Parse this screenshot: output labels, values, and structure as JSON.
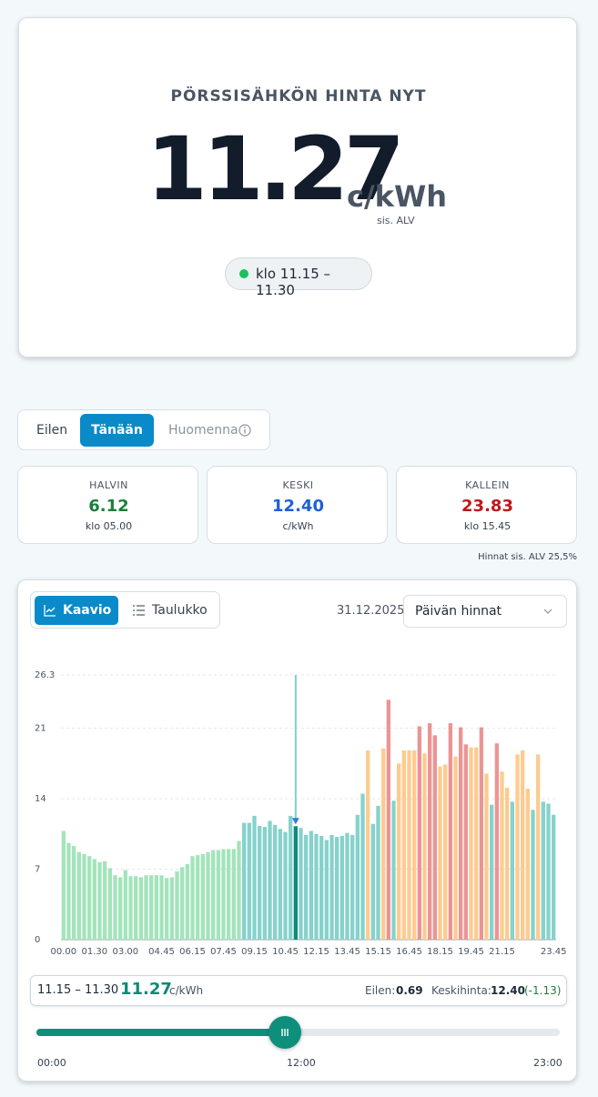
{
  "hero": {
    "title": "PÖRSSISÄHKÖN HINTA NYT",
    "price": "11.27",
    "unit": "c/kWh",
    "vat": "sis. ALV",
    "period": "klo 11.15 – 11.30"
  },
  "day_tabs": [
    "Eilen",
    "Tänään",
    "Huomenna"
  ],
  "stats": [
    {
      "label": "HALVIN",
      "value": "6.12",
      "note": "klo 05.00"
    },
    {
      "label": "KESKI",
      "value": "12.40",
      "note": "c/kWh"
    },
    {
      "label": "KALLEIN",
      "value": "23.83",
      "note": "klo 15.45"
    }
  ],
  "vat_note": "Hinnat sis. ALV 25,5%",
  "view_tabs": [
    "Kaavio",
    "Taulukko"
  ],
  "date": "31.12.2025",
  "select": "Päivän hinnat",
  "chart_data": {
    "type": "bar",
    "categories": [
      "00.00",
      null,
      null,
      null,
      null,
      null,
      "01.30",
      null,
      null,
      null,
      null,
      null,
      "03.00",
      null,
      null,
      null,
      null,
      null,
      null,
      "04.45",
      null,
      null,
      null,
      null,
      null,
      "06.15",
      null,
      null,
      null,
      null,
      null,
      "07.45",
      null,
      null,
      null,
      null,
      null,
      "09.15",
      null,
      null,
      null,
      null,
      null,
      "10.45",
      null,
      null,
      null,
      null,
      null,
      "12.15",
      null,
      null,
      null,
      null,
      null,
      "13.45",
      null,
      null,
      null,
      null,
      null,
      "15.15",
      null,
      null,
      null,
      null,
      null,
      "16.45",
      null,
      null,
      null,
      null,
      null,
      "18.15",
      null,
      null,
      null,
      null,
      null,
      "19.45",
      null,
      null,
      null,
      null,
      null,
      "21.15",
      null,
      null,
      null,
      null,
      null,
      null,
      null,
      null,
      null,
      "23.45"
    ],
    "values": [
      10.8,
      9.6,
      9.3,
      8.7,
      8.5,
      8.3,
      8.0,
      7.7,
      7.8,
      7.1,
      6.4,
      6.2,
      6.9,
      6.3,
      6.3,
      6.2,
      6.4,
      6.4,
      6.4,
      6.4,
      6.12,
      6.2,
      6.8,
      7.2,
      7.5,
      8.3,
      8.4,
      8.5,
      8.7,
      8.9,
      8.9,
      9.0,
      9.0,
      9.0,
      9.8,
      11.6,
      11.6,
      12.3,
      11.3,
      11.2,
      11.8,
      11.4,
      11.0,
      10.7,
      12.3,
      11.27,
      11.1,
      10.4,
      10.8,
      10.5,
      10.3,
      9.9,
      10.4,
      10.2,
      10.3,
      10.6,
      10.4,
      12.4,
      14.5,
      18.8,
      11.5,
      13.3,
      19.0,
      23.83,
      13.8,
      17.5,
      18.8,
      18.8,
      18.8,
      21.2,
      18.5,
      21.5,
      20.3,
      17.2,
      17.4,
      21.5,
      18.2,
      21.1,
      19.4,
      19.1,
      19.1,
      21.1,
      16.5,
      13.4,
      19.5,
      16.7,
      15.1,
      13.7,
      18.4,
      18.8,
      15.0,
      12.9,
      18.4,
      13.7,
      13.5,
      12.4
    ],
    "colors": [
      "#a3e4bb",
      "#a3e4bb",
      "#a3e4bb",
      "#a3e4bb",
      "#a3e4bb",
      "#a3e4bb",
      "#a3e4bb",
      "#a3e4bb",
      "#a3e4bb",
      "#a3e4bb",
      "#a3e4bb",
      "#a3e4bb",
      "#a3e4bb",
      "#a3e4bb",
      "#a3e4bb",
      "#a3e4bb",
      "#a3e4bb",
      "#a3e4bb",
      "#a3e4bb",
      "#a3e4bb",
      "#a3e4bb",
      "#a3e4bb",
      "#a3e4bb",
      "#a3e4bb",
      "#a3e4bb",
      "#a3e4bb",
      "#a3e4bb",
      "#a3e4bb",
      "#a3e4bb",
      "#a3e4bb",
      "#a3e4bb",
      "#a3e4bb",
      "#a3e4bb",
      "#a3e4bb",
      "#a3e4bb",
      "#86d2cc",
      "#86d2cc",
      "#86d2cc",
      "#86d2cc",
      "#86d2cc",
      "#86d2cc",
      "#86d2cc",
      "#86d2cc",
      "#86d2cc",
      "#86d2cc",
      "#0d8a78",
      "#86d2cc",
      "#86d2cc",
      "#86d2cc",
      "#86d2cc",
      "#86d2cc",
      "#86d2cc",
      "#86d2cc",
      "#86d2cc",
      "#86d2cc",
      "#86d2cc",
      "#86d2cc",
      "#86d2cc",
      "#86d2cc",
      "#fdcb8f",
      "#86d2cc",
      "#86d2cc",
      "#fdcb8f",
      "#ec9494",
      "#86d2cc",
      "#fdcb8f",
      "#fdcb8f",
      "#fdcb8f",
      "#fdcb8f",
      "#ec9494",
      "#fdcb8f",
      "#ec9494",
      "#ec9494",
      "#fdcb8f",
      "#fdcb8f",
      "#ec9494",
      "#fdcb8f",
      "#ec9494",
      "#ec9494",
      "#fdcb8f",
      "#fdcb8f",
      "#ec9494",
      "#fdcb8f",
      "#86d2cc",
      "#ec9494",
      "#fdcb8f",
      "#fdcb8f",
      "#86d2cc",
      "#fdcb8f",
      "#fdcb8f",
      "#fdcb8f",
      "#86d2cc",
      "#fdcb8f",
      "#86d2cc",
      "#86d2cc",
      "#86d2cc"
    ],
    "current_index": 45,
    "ylim": [
      0,
      26.3
    ],
    "yticks": [
      0,
      7,
      14,
      21,
      26.3
    ],
    "grid": true
  },
  "info": {
    "period": "11.15 – 11.30",
    "price": "11.27",
    "unit": "c/kWh",
    "yesterday_label": "Eilen:",
    "yesterday_value": "0.69",
    "avg_label": "Keskihinta:",
    "avg_value": "12.40",
    "avg_diff": "(-1.13)"
  },
  "slider": {
    "labels": [
      "00:00",
      "12:00",
      "23:00"
    ]
  }
}
